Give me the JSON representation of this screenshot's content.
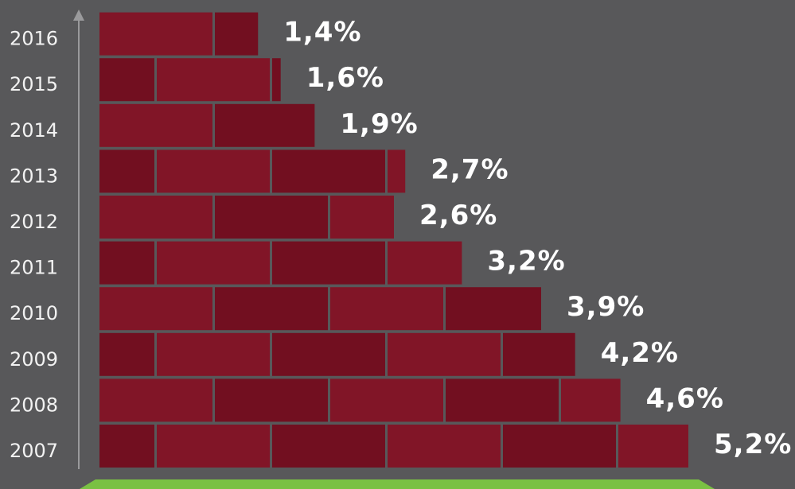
{
  "colors": {
    "background": "#58585a",
    "brick_dark": "#720f20",
    "brick_light": "#811527",
    "mortar": "#5e5e60",
    "axis": "#9a9a9c",
    "ground": "#7ac143",
    "text": "#ffffff"
  },
  "chart_data": {
    "type": "bar",
    "orientation": "horizontal",
    "title": "",
    "xlabel": "",
    "ylabel": "",
    "categories": [
      "2007",
      "2008",
      "2009",
      "2010",
      "2011",
      "2012",
      "2013",
      "2014",
      "2015",
      "2016"
    ],
    "values": [
      5.2,
      4.6,
      4.2,
      3.9,
      3.2,
      2.6,
      2.7,
      1.9,
      1.6,
      1.4
    ],
    "value_labels": [
      "5,2%",
      "4,6%",
      "4,2%",
      "3,9%",
      "3,2%",
      "2,6%",
      "2,7%",
      "1,9%",
      "1,6%",
      "1,4%"
    ],
    "xlim": [
      0,
      5.2
    ],
    "grid": false,
    "legend": "none",
    "bar_style": "bricks"
  }
}
